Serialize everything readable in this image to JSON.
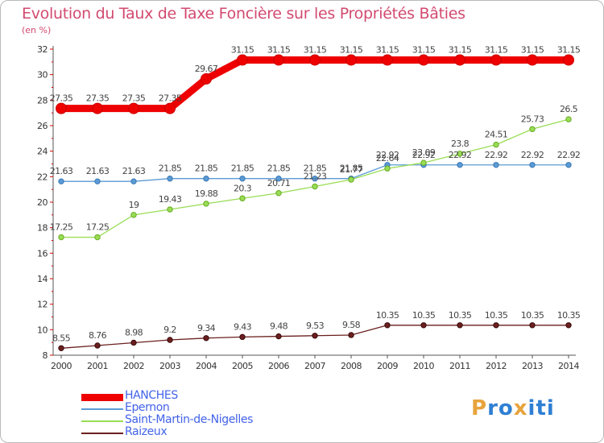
{
  "header": {
    "title": "Evolution du Taux de Taxe Foncière sur les Propriétés Bâties",
    "unit": "(en %)"
  },
  "logo": {
    "text": "Proxiti",
    "letters": [
      "P",
      "r",
      "o",
      "x",
      "i",
      "t",
      "i"
    ],
    "colors": [
      "#e8a33c",
      "#2f7fd4",
      "#2f7fd4",
      "#e8a33c",
      "#2f7fd4",
      "#2f7fd4",
      "#2f7fd4"
    ]
  },
  "chart_data": {
    "type": "line",
    "title": "Evolution du Taux de Taxe Foncière sur les Propriétés Bâties",
    "ylabel": "(en %)",
    "xlabel": "",
    "x": [
      "2000",
      "2001",
      "2002",
      "2003",
      "2004",
      "2005",
      "2006",
      "2007",
      "2008",
      "2009",
      "2010",
      "2011",
      "2012",
      "2013",
      "2014"
    ],
    "ylim": [
      8,
      32
    ],
    "yticks": [
      8,
      10,
      12,
      14,
      16,
      18,
      20,
      22,
      24,
      26,
      28,
      30,
      32
    ],
    "grid": false,
    "legend_position": "bottom-left",
    "series": [
      {
        "name": "HANCHES",
        "color": "#ee0000",
        "values": [
          27.35,
          27.35,
          27.35,
          27.35,
          29.67,
          31.15,
          31.15,
          31.15,
          31.15,
          31.15,
          31.15,
          31.15,
          31.15,
          31.15,
          31.15
        ],
        "labels": [
          "27.35",
          "27.35",
          "27.35",
          "27.35",
          "29.67",
          "31.15",
          "31.15",
          "31.15",
          "31.15",
          "31.15",
          "31.15",
          "31.15",
          "31.15",
          "31.15",
          "31.15"
        ]
      },
      {
        "name": "Epernon",
        "color": "#5b9bd5",
        "values": [
          21.63,
          21.63,
          21.63,
          21.85,
          21.85,
          21.85,
          21.85,
          21.85,
          21.85,
          22.92,
          22.92,
          22.92,
          22.92,
          22.92,
          22.92
        ],
        "labels": [
          "21.63",
          "21.63",
          "21.63",
          "21.85",
          "21.85",
          "21.85",
          "21.85",
          "21.85",
          "21.85",
          "22.92",
          "22.92",
          "22.92",
          "22.92",
          "22.92",
          "22.92"
        ]
      },
      {
        "name": "Saint-Martin-de-Nigelles",
        "color": "#99dd55",
        "values": [
          17.25,
          17.25,
          19,
          19.43,
          19.88,
          20.3,
          20.71,
          21.23,
          21.77,
          22.64,
          23.09,
          23.8,
          24.51,
          25.73,
          26.5
        ],
        "labels": [
          "17.25",
          "17.25",
          "19",
          "19.43",
          "19.88",
          "20.3",
          "20.71",
          "21.23",
          "21.77",
          "22.64",
          "23.09",
          "23.8",
          "24.51",
          "25.73",
          "26.5"
        ]
      },
      {
        "name": "Raizeux",
        "color": "#6b1f1f",
        "values": [
          8.55,
          8.76,
          8.98,
          9.2,
          9.34,
          9.43,
          9.48,
          9.53,
          9.58,
          10.35,
          10.35,
          10.35,
          10.35,
          10.35,
          10.35
        ],
        "labels": [
          "8.55",
          "8.76",
          "8.98",
          "9.2",
          "9.34",
          "9.43",
          "9.48",
          "9.53",
          "9.58",
          "10.35",
          "10.35",
          "10.35",
          "10.35",
          "10.35",
          "10.35"
        ]
      }
    ]
  }
}
